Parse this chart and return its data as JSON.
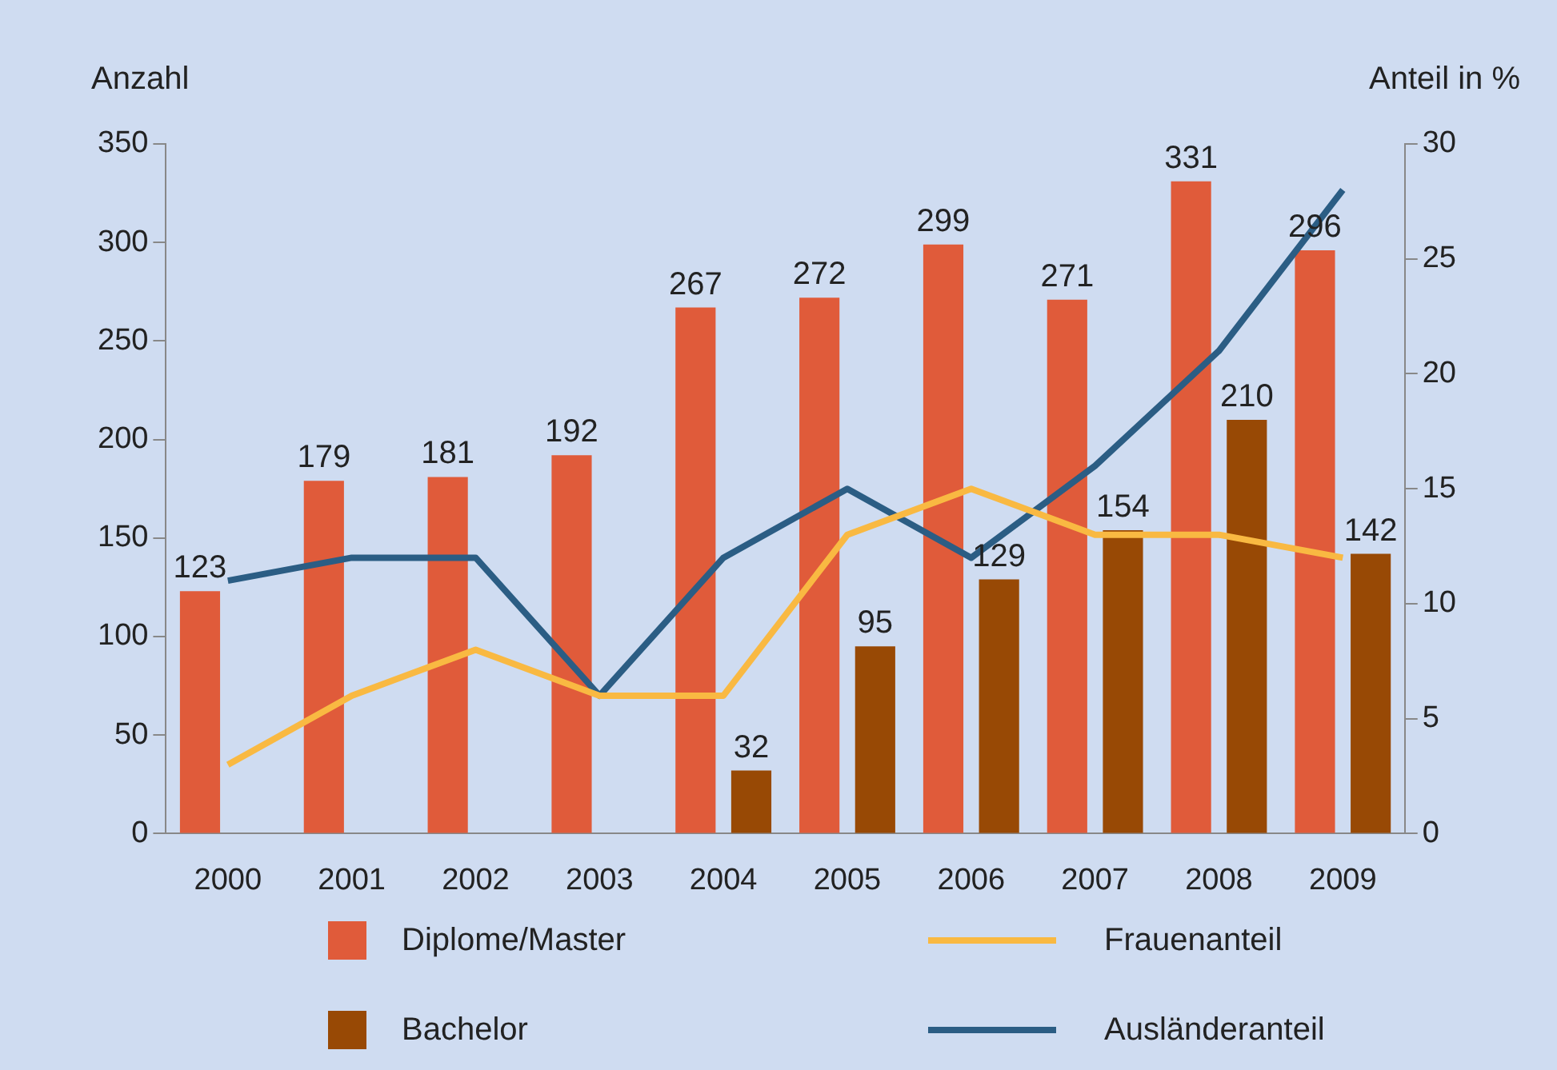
{
  "chart_data": {
    "type": "bar",
    "ylabel": "Anzahl",
    "y2label": "Anteil in %",
    "categories": [
      "2000",
      "2001",
      "2002",
      "2003",
      "2004",
      "2005",
      "2006",
      "2007",
      "2008",
      "2009"
    ],
    "series": [
      {
        "name": "Diplome/Master",
        "color": "#e05b3a",
        "values": [
          123,
          179,
          181,
          192,
          267,
          272,
          299,
          271,
          331,
          296
        ],
        "value_labels": [
          "123",
          "179",
          "181",
          "192",
          "267",
          "272",
          "299",
          "271",
          "331",
          "296"
        ]
      },
      {
        "name": "Bachelor",
        "color": "#984905",
        "values": [
          null,
          null,
          null,
          null,
          32,
          95,
          129,
          154,
          210,
          142
        ],
        "value_labels": [
          null,
          null,
          null,
          null,
          "32",
          "95",
          "129",
          "154",
          "210",
          "142"
        ]
      },
      {
        "name": "Frauenanteil",
        "type": "line",
        "axis": "y2",
        "color": "#f9b942",
        "values": [
          3,
          6,
          8,
          6,
          6,
          13,
          15,
          13,
          13,
          12
        ]
      },
      {
        "name": "Ausländeranteil",
        "type": "line",
        "axis": "y2",
        "color": "#2b5d84",
        "values": [
          11,
          12,
          12,
          6,
          12,
          15,
          12,
          16,
          21,
          28
        ]
      }
    ],
    "ylim": [
      0,
      350
    ],
    "yticks": [
      0,
      50,
      100,
      150,
      200,
      250,
      300,
      350
    ],
    "y2lim": [
      0,
      30
    ],
    "y2ticks": [
      0,
      5,
      10,
      15,
      20,
      25,
      30
    ],
    "grid": false,
    "legend": "bottom",
    "marker": "none",
    "line_style": "solid"
  }
}
